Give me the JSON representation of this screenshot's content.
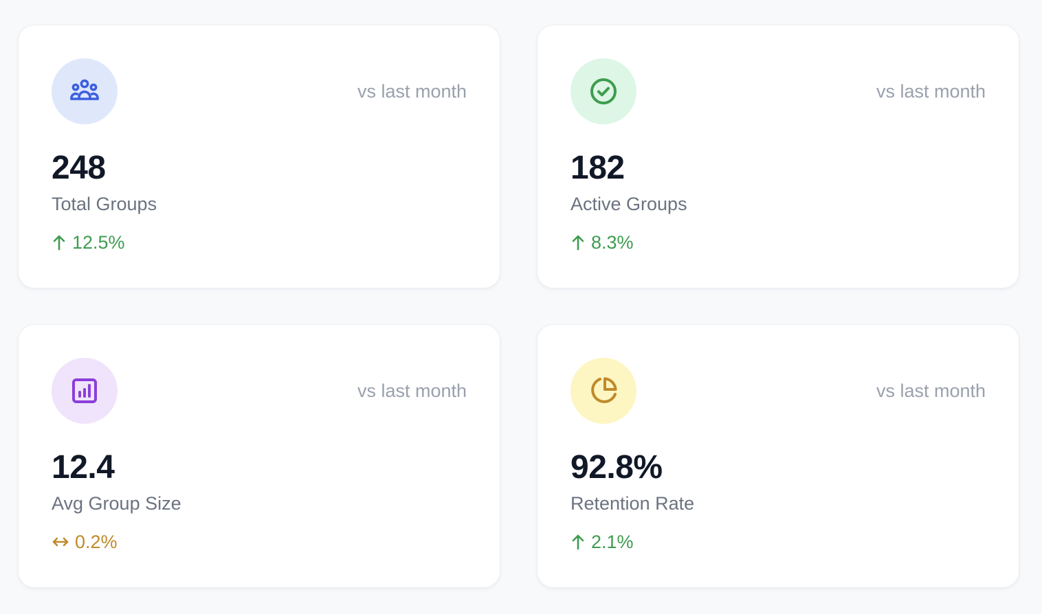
{
  "colors": {
    "blue_icon": "#3d5fe0",
    "green_icon": "#3e9c4f",
    "purple_icon": "#8b3fd9",
    "yellow_icon": "#c0892a",
    "trend_up": "#3e9c4f",
    "trend_flat": "#c0892a"
  },
  "cards": [
    {
      "icon": "users-icon",
      "compare": "vs last month",
      "value": "248",
      "label": "Total Groups",
      "trend": "12.5%",
      "trend_direction": "up"
    },
    {
      "icon": "check-circle-icon",
      "compare": "vs last month",
      "value": "182",
      "label": "Active Groups",
      "trend": "8.3%",
      "trend_direction": "up"
    },
    {
      "icon": "bar-chart-icon",
      "compare": "vs last month",
      "value": "12.4",
      "label": "Avg Group Size",
      "trend": "0.2%",
      "trend_direction": "neutral"
    },
    {
      "icon": "pie-chart-icon",
      "compare": "vs last month",
      "value": "92.8%",
      "label": "Retention Rate",
      "trend": "2.1%",
      "trend_direction": "up"
    }
  ]
}
